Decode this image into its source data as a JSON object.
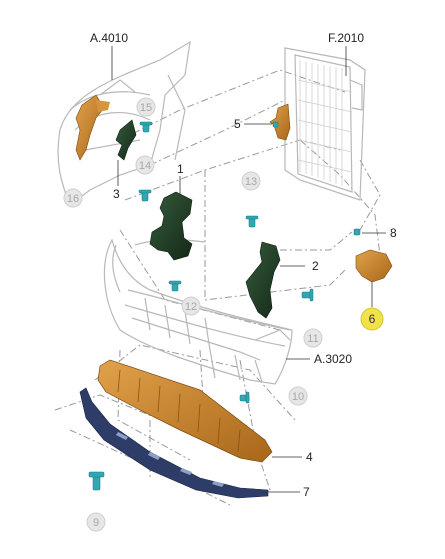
{
  "diagram": {
    "callouts": {
      "n1": "1",
      "n2": "2",
      "n3": "3",
      "n4": "4",
      "n5": "5",
      "n6": "6",
      "n7": "7",
      "n8": "8",
      "n9": "9",
      "n10": "10",
      "n11": "11",
      "n12": "12",
      "n13": "13",
      "n14": "14",
      "n15": "15",
      "n16": "16"
    },
    "references": {
      "fender": "A.4010",
      "radiator": "F.2010",
      "bumper": "A.3020"
    },
    "highlighted_part": "6",
    "colors": {
      "highlight": "#f2e24a",
      "orange_part": "#c8861e",
      "dark_green_part": "#1f3d25",
      "blue_part": "#2d3d68",
      "fastener": "#2fa8b3",
      "outline": "#b8b8b8",
      "leader": "#333333"
    }
  }
}
